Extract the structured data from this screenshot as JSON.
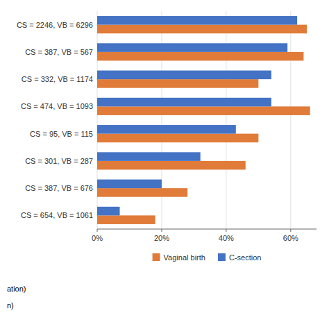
{
  "chart_data": {
    "type": "bar",
    "orientation": "horizontal",
    "categories": [
      "CS = 2246, VB = 6296",
      "CS = 387, VB = 567",
      "CS = 332, VB = 1174",
      "CS = 474, VB = 1093",
      "CS = 95, VB = 115",
      "CS = 301, VB = 287",
      "CS = 387, VB = 676",
      "CS = 654, VB = 1061"
    ],
    "series": [
      {
        "name": "Vaginal birth",
        "color": "#E07B39",
        "values": [
          65,
          64,
          50,
          66,
          50,
          46,
          28,
          18
        ]
      },
      {
        "name": "C-section",
        "color": "#4472C4",
        "values": [
          62,
          59,
          54,
          54,
          43,
          32,
          20,
          7
        ]
      }
    ],
    "xlim": [
      0,
      68
    ],
    "xticks": [
      {
        "value": 0,
        "label": "0%"
      },
      {
        "value": 20,
        "label": "20%"
      },
      {
        "value": 40,
        "label": "40%"
      },
      {
        "value": 60,
        "label": "60%"
      }
    ],
    "grid": true,
    "legend": "bottom",
    "annotations": [
      "ation)",
      "n)"
    ]
  }
}
